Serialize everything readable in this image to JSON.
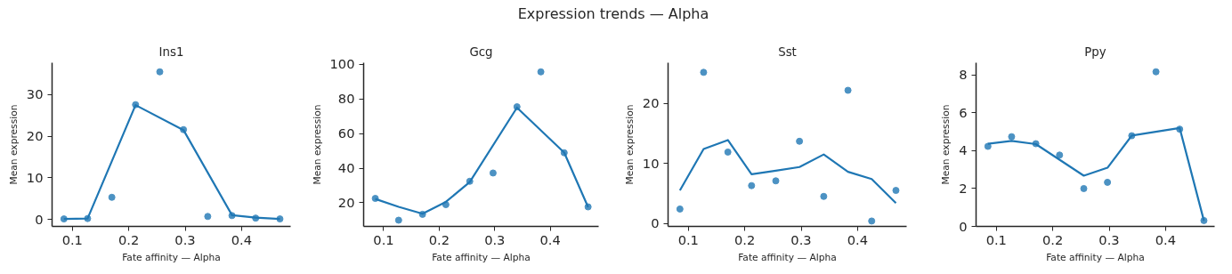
{
  "chart_data": [
    {
      "type": "scatter",
      "title": "Ins1",
      "annotations": [
        "Expression trends — Alpha"
      ],
      "xlabel": "Fate affinity — Alpha",
      "ylabel": "Mean expression",
      "marker": "circle",
      "grid": false,
      "x": [
        0.085,
        0.127,
        0.17,
        0.212,
        0.255,
        0.297,
        0.34,
        0.383,
        0.425,
        0.468
      ],
      "series": [
        {
          "color": "#4c92c3",
          "values": [
            0.1,
            0.2,
            5.3,
            27.6,
            35.5,
            21.6,
            0.7,
            0.9,
            0.3,
            0.1
          ]
        },
        {
          "type": "line",
          "marker": "none",
          "color": "#1f77b4",
          "x": [
            0.085,
            0.127,
            0.212,
            0.297,
            0.383,
            0.425,
            0.468
          ],
          "values": [
            0.1,
            0.2,
            27.5,
            21.5,
            1.0,
            0.4,
            0.1
          ]
        }
      ],
      "xlim": [
        0.064,
        0.487
      ],
      "xticks": [
        0.1,
        0.2,
        0.3,
        0.4
      ],
      "ylim": [
        -1.7,
        37.7
      ],
      "yticks": [
        0,
        10,
        20,
        30
      ]
    },
    {
      "type": "scatter",
      "title": "Gcg",
      "xlabel": "Fate affinity — Alpha",
      "ylabel": "Mean expression",
      "marker": "circle",
      "grid": false,
      "x": [
        0.085,
        0.127,
        0.17,
        0.212,
        0.255,
        0.297,
        0.34,
        0.383,
        0.425,
        0.468
      ],
      "series": [
        {
          "color": "#4c92c3",
          "values": [
            22.5,
            9.9,
            13.3,
            18.9,
            32.4,
            37.2,
            75.5,
            95.7,
            48.9,
            17.6
          ]
        },
        {
          "type": "line",
          "marker": "none",
          "color": "#1f77b4",
          "x": [
            0.085,
            0.127,
            0.17,
            0.212,
            0.255,
            0.34,
            0.425,
            0.468
          ],
          "values": [
            22.2,
            17.6,
            13.6,
            20.5,
            32,
            75,
            49,
            17.5
          ]
        }
      ],
      "xlim": [
        0.064,
        0.487
      ],
      "xticks": [
        0.1,
        0.2,
        0.3,
        0.4
      ],
      "ylim": [
        6.3,
        101
      ],
      "yticks": [
        20,
        40,
        60,
        80,
        100
      ]
    },
    {
      "type": "scatter",
      "title": "Sst",
      "xlabel": "Fate affinity — Alpha",
      "ylabel": "Mean expression",
      "marker": "circle",
      "grid": false,
      "x": [
        0.085,
        0.127,
        0.17,
        0.212,
        0.255,
        0.297,
        0.34,
        0.383,
        0.425,
        0.468
      ],
      "series": [
        {
          "color": "#4c92c3",
          "values": [
            2.4,
            25.2,
            11.9,
            6.3,
            7.1,
            13.7,
            4.5,
            22.2,
            0.4,
            5.5
          ]
        },
        {
          "type": "line",
          "marker": "none",
          "color": "#1f77b4",
          "values": [
            5.5,
            12.4,
            13.9,
            8.2,
            8.8,
            9.4,
            11.5,
            8.6,
            7.4,
            3.4
          ]
        }
      ],
      "xlim": [
        0.064,
        0.487
      ],
      "xticks": [
        0.1,
        0.2,
        0.3,
        0.4
      ],
      "ylim": [
        -0.5,
        26.8
      ],
      "yticks": [
        0,
        10,
        20
      ]
    },
    {
      "type": "scatter",
      "title": "Ppy",
      "xlabel": "Fate affinity — Alpha",
      "ylabel": "Mean expression",
      "marker": "circle",
      "grid": false,
      "x": [
        0.085,
        0.127,
        0.17,
        0.212,
        0.255,
        0.297,
        0.34,
        0.383,
        0.425,
        0.468
      ],
      "series": [
        {
          "color": "#4c92c3",
          "values": [
            4.23,
            4.74,
            4.37,
            3.77,
            2.0,
            2.33,
            4.79,
            8.17,
            5.14,
            0.31
          ]
        },
        {
          "type": "line",
          "marker": "none",
          "color": "#1f77b4",
          "x": [
            0.085,
            0.127,
            0.17,
            0.255,
            0.297,
            0.34,
            0.425,
            0.468
          ],
          "values": [
            4.37,
            4.52,
            4.35,
            2.68,
            3.1,
            4.8,
            5.2,
            0.3
          ]
        }
      ],
      "xlim": [
        0.064,
        0.487
      ],
      "xticks": [
        0.1,
        0.2,
        0.3,
        0.4
      ],
      "ylim": [
        0,
        8.65
      ],
      "yticks": [
        0,
        2,
        4,
        6,
        8
      ]
    }
  ]
}
